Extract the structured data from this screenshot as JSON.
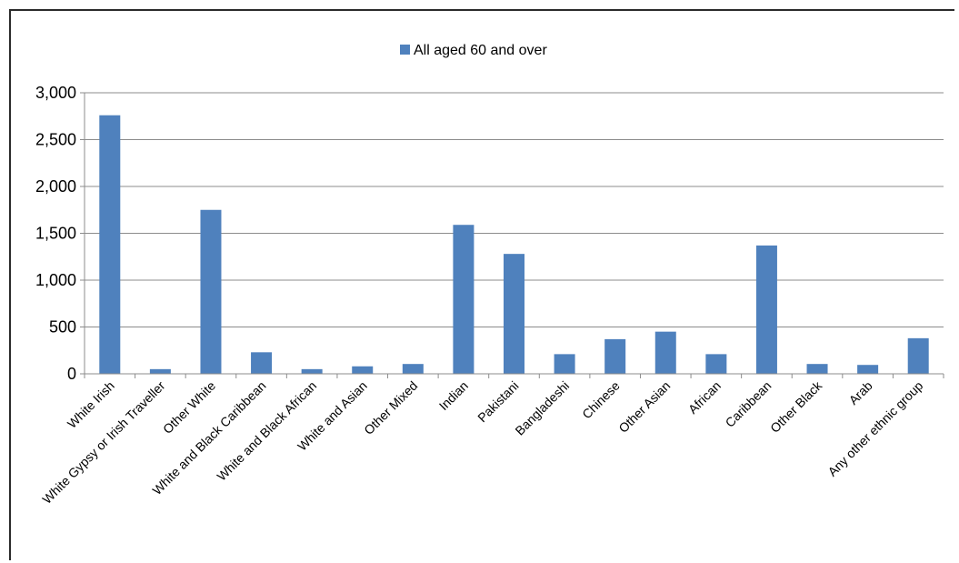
{
  "chart_data": {
    "type": "bar",
    "title": "",
    "xlabel": "",
    "ylabel": "",
    "categories": [
      "White Irish",
      "White Gypsy or Irish Traveller",
      "Other White",
      "White and Black Caribbean",
      "White and Black African",
      "White and Asian",
      "Other Mixed",
      "Indian",
      "Pakistani",
      "Bangladeshi",
      "Chinese",
      "Other Asian",
      "African",
      "Caribbean",
      "Other Black",
      "Arab",
      "Any other ethnic group"
    ],
    "series": [
      {
        "name": "All aged 60 and over",
        "color": "#4f81bd",
        "values": [
          2760,
          50,
          1750,
          230,
          50,
          80,
          105,
          1590,
          1280,
          210,
          370,
          450,
          210,
          1370,
          105,
          95,
          380
        ]
      }
    ],
    "ylim": [
      0,
      3000
    ],
    "yticks": [
      0,
      500,
      1000,
      1500,
      2000,
      2500,
      3000
    ],
    "ytick_labels": [
      "0",
      "500",
      "1,000",
      "1,500",
      "2,000",
      "2,500",
      "3,000"
    ],
    "grid": true,
    "legend": "top-center"
  }
}
